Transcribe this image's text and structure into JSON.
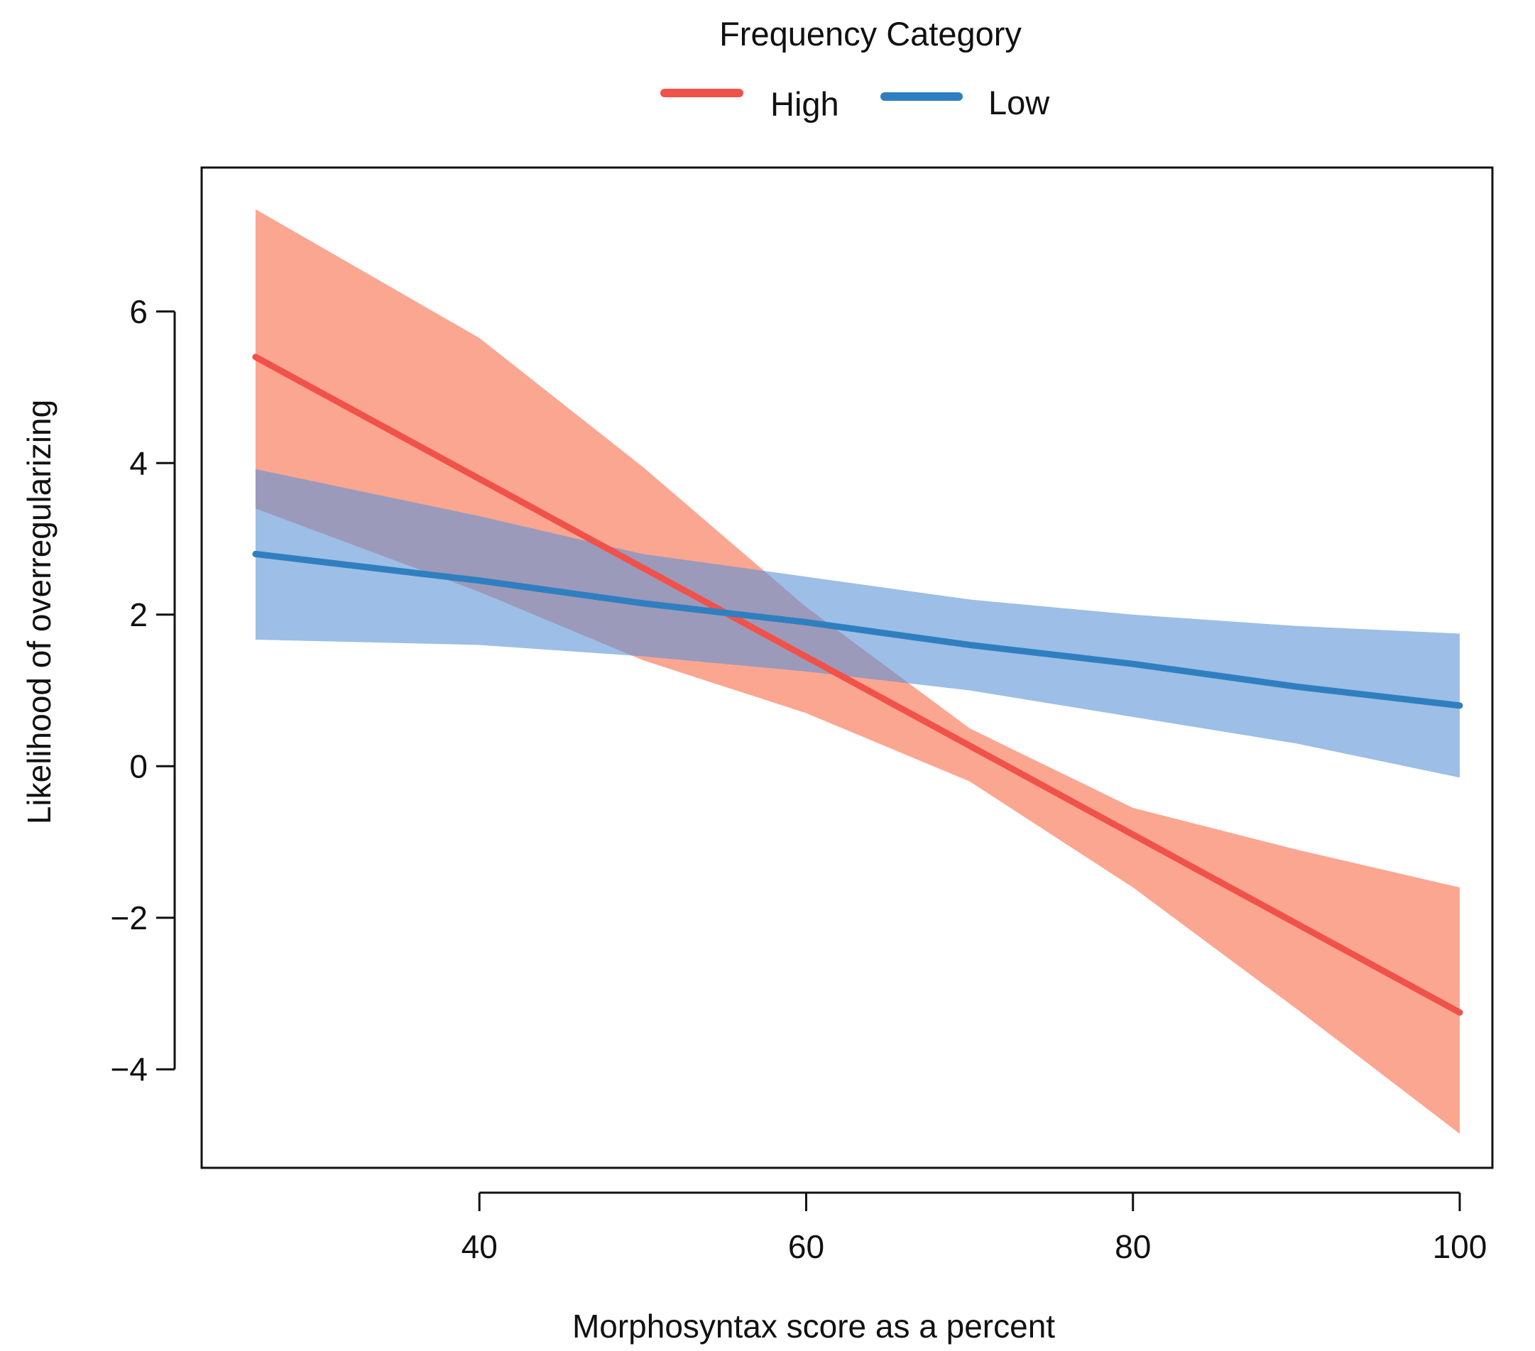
{
  "chart_data": {
    "type": "line",
    "title": "",
    "xlabel": "Morphosyntax score as a percent",
    "ylabel": "Likelihood of overregularizing",
    "xlim": [
      23,
      102
    ],
    "ylim": [
      -5.3,
      7.9
    ],
    "xticks": [
      40,
      60,
      80,
      100
    ],
    "xtick_labels": [
      "40",
      "60",
      "80",
      "100"
    ],
    "yticks": [
      -4,
      -2,
      0,
      2,
      4,
      6
    ],
    "ytick_labels": [
      "−4",
      "−2",
      "0",
      "2",
      "4",
      "6"
    ],
    "grid": false,
    "legend": {
      "title": "Frequency Category",
      "position": "top-center"
    },
    "series": [
      {
        "name": "High",
        "color": "#f0524a",
        "band_color": "#fa8366",
        "band_opacity": 0.72,
        "x": [
          26.3,
          100
        ],
        "y": [
          5.4,
          -3.25
        ],
        "band_x": [
          26.3,
          40,
          50,
          60,
          70,
          80,
          90,
          100
        ],
        "band_upper": [
          7.35,
          5.65,
          3.95,
          2.1,
          0.5,
          -0.55,
          -1.1,
          -1.6
        ],
        "band_lower": [
          3.4,
          2.3,
          1.4,
          0.7,
          -0.2,
          -1.6,
          -3.2,
          -4.85
        ]
      },
      {
        "name": "Low",
        "color": "#2f7fc0",
        "band_color": "#5c92d6",
        "band_opacity": 0.6,
        "x": [
          26.3,
          40,
          50,
          60,
          70,
          80,
          90,
          100
        ],
        "y": [
          2.8,
          2.45,
          2.15,
          1.9,
          1.6,
          1.35,
          1.05,
          0.8
        ],
        "band_x": [
          26.3,
          40,
          50,
          60,
          70,
          80,
          90,
          100
        ],
        "band_upper": [
          3.92,
          3.3,
          2.8,
          2.5,
          2.2,
          2.0,
          1.85,
          1.75
        ],
        "band_lower": [
          1.67,
          1.6,
          1.45,
          1.25,
          1.0,
          0.65,
          0.3,
          -0.15
        ]
      }
    ]
  }
}
